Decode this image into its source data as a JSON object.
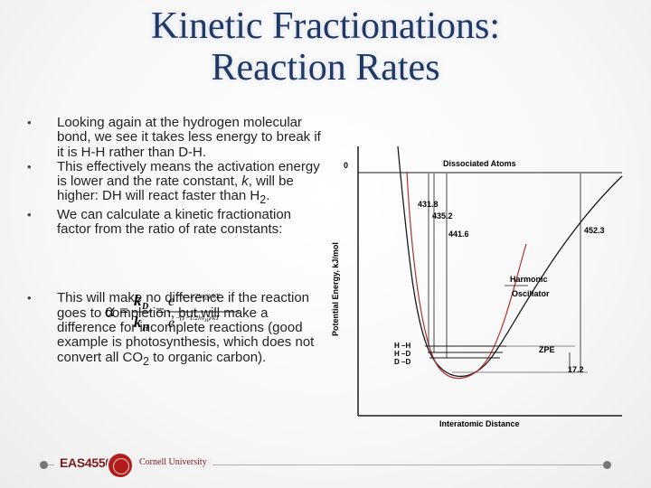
{
  "slide": {
    "title_line1": "Kinetic Fractionations:",
    "title_line2": "Reaction Rates"
  },
  "bullets": [
    {
      "text": "Looking again at the hydrogen molecular bond, we see it takes less energy to break if it is H-H rather than D-H."
    },
    {
      "pre": "This effectively means the activation energy is lower and the rate constant, ",
      "italic": "k",
      "mid": ", will be higher: DH will react faster than H",
      "sub": "2",
      "post": "."
    },
    {
      "text": "We can calculate a kinetic fractionation factor from the ratio of rate constants:"
    },
    {
      "pre": "This will make no difference if the reaction goes to completion, but will make a difference for incomplete reactions (good example is photosynthesis, which does not convert all CO",
      "sub": "2",
      "post": " to organic carbon)."
    }
  ],
  "bullet_symbol": "•",
  "formula": {
    "alpha": "α",
    "eq": "=",
    "kD": "k",
    "kD_sub": "D",
    "kH": "k",
    "kH_sub": "H",
    "e": "e",
    "exp_D": "−(ε−1/2hν",
    "exp_D_sub": "D",
    "exp_D_end": ")/kT",
    "exp_H": "−(ε−1/2hν",
    "exp_H_sub": "H",
    "exp_H_end": ")/kT"
  },
  "chart": {
    "ylabel": "Potential Energy, kJ/mol",
    "xlabel": "Interatomic Distance",
    "zero_label": "0",
    "dissociated": "Dissociated Atoms",
    "harmonic_1": "Harmonic",
    "harmonic_2": "Oscillator",
    "zpe": "ZPE",
    "values": {
      "v1": "431.8",
      "v2": "435.2",
      "v3": "441.6",
      "v4": "452.3",
      "v5": "17.2"
    },
    "levels": {
      "hh": "H –H",
      "hd": "H –D",
      "dd": "D –D"
    },
    "colors": {
      "morse": "#1a1a1a",
      "harmonic": "#b03030"
    }
  },
  "footer": {
    "course": "EAS4550",
    "university": "Cornell University"
  }
}
